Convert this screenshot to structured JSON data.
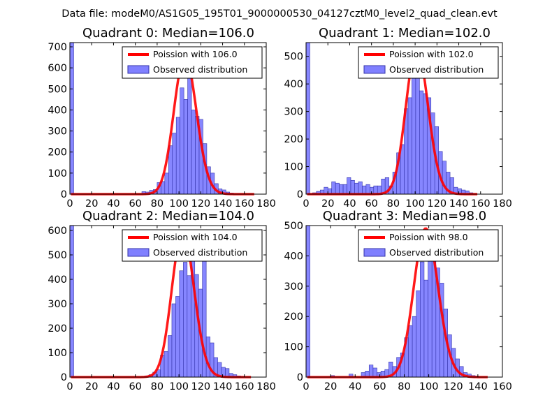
{
  "suptitle": "Data file: modeM0/AS1G05_195T01_9000000530_04127cztM0_level2_quad_clean.evt",
  "colors": {
    "hist_fill": "#8080ff",
    "hist_edge": "#3333aa",
    "poisson_line": "#ff0000"
  },
  "chart_data": [
    {
      "type": "bar",
      "title": "Quadrant 0: Median=106.0",
      "legend": {
        "line_label": "Poission with 106.0",
        "hist_label": "Observed distribution",
        "position": "top-right"
      },
      "xlim": [
        0,
        180
      ],
      "xticks": [
        0,
        20,
        40,
        60,
        80,
        100,
        120,
        140,
        160,
        180
      ],
      "ylim": [
        0,
        720
      ],
      "yticks": [
        0,
        100,
        200,
        300,
        400,
        500,
        600,
        700
      ],
      "bin_width": 3.5,
      "bins_x": [
        0,
        66,
        69.5,
        73,
        76.5,
        80,
        83.5,
        87,
        90.5,
        94,
        97.5,
        101,
        104.5,
        108,
        111.5,
        115,
        118.5,
        122,
        125.5,
        129,
        132.5,
        136,
        139.5,
        143,
        146.5
      ],
      "counts": [
        720,
        12,
        10,
        18,
        22,
        55,
        60,
        100,
        230,
        290,
        365,
        505,
        450,
        595,
        400,
        370,
        355,
        240,
        130,
        100,
        50,
        25,
        20,
        10,
        5
      ],
      "poisson_mean": 106.0,
      "poisson_peak": 655,
      "poisson_xrange": [
        1,
        169
      ]
    },
    {
      "type": "bar",
      "title": "Quadrant 1: Median=102.0",
      "legend": {
        "line_label": "Poission with 102.0",
        "hist_label": "Observed distribution",
        "position": "top-right"
      },
      "xlim": [
        0,
        180
      ],
      "xticks": [
        0,
        20,
        40,
        60,
        80,
        100,
        120,
        140,
        160,
        180
      ],
      "ylim": [
        0,
        550
      ],
      "yticks": [
        0,
        100,
        200,
        300,
        400,
        500
      ],
      "bin_width": 3.5,
      "bins_x": [
        0,
        6,
        9.5,
        13,
        16.5,
        20,
        23.5,
        27,
        30.5,
        34,
        37.5,
        41,
        44.5,
        48,
        51.5,
        55,
        58.5,
        62,
        65.5,
        69,
        72.5,
        76,
        79.5,
        83,
        86.5,
        90,
        93.5,
        97,
        100.5,
        104,
        107.5,
        111,
        114.5,
        118,
        121.5,
        125,
        128.5,
        132,
        135.5,
        139,
        142.5,
        146,
        149.5
      ],
      "counts": [
        550,
        5,
        10,
        15,
        25,
        20,
        45,
        40,
        35,
        35,
        60,
        50,
        40,
        45,
        30,
        35,
        25,
        30,
        30,
        55,
        60,
        30,
        80,
        150,
        180,
        310,
        350,
        430,
        460,
        375,
        365,
        350,
        295,
        245,
        155,
        120,
        80,
        60,
        25,
        20,
        15,
        12,
        5
      ],
      "poisson_mean": 102.0,
      "poisson_peak": 530,
      "poisson_xrange": [
        1,
        157
      ]
    },
    {
      "type": "bar",
      "title": "Quadrant 2: Median=104.0",
      "legend": {
        "line_label": "Poission with 104.0",
        "hist_label": "Observed distribution",
        "position": "top-right"
      },
      "xlim": [
        0,
        180
      ],
      "xticks": [
        0,
        20,
        40,
        60,
        80,
        100,
        120,
        140,
        160,
        180
      ],
      "ylim": [
        0,
        620
      ],
      "yticks": [
        0,
        100,
        200,
        300,
        400,
        500,
        600
      ],
      "bin_width": 3.5,
      "bins_x": [
        0,
        69,
        72.5,
        76,
        79.5,
        83,
        86.5,
        90,
        93.5,
        97,
        100.5,
        104,
        107.5,
        111,
        114.5,
        118,
        121.5,
        125,
        128.5,
        132,
        135.5,
        139,
        142.5,
        146,
        149.5,
        153,
        156.5
      ],
      "counts": [
        620,
        5,
        10,
        20,
        30,
        90,
        105,
        170,
        300,
        330,
        435,
        470,
        415,
        505,
        420,
        360,
        475,
        165,
        140,
        80,
        60,
        40,
        35,
        15,
        10,
        5,
        3
      ],
      "poisson_mean": 104.0,
      "poisson_peak": 595,
      "poisson_xrange": [
        1,
        166
      ]
    },
    {
      "type": "bar",
      "title": "Quadrant 3: Median=98.0",
      "legend": {
        "line_label": "Poission with 98.0",
        "hist_label": "Observed distribution",
        "position": "top-right"
      },
      "xlim": [
        0,
        160
      ],
      "xticks": [
        0,
        20,
        40,
        60,
        80,
        100,
        120,
        140,
        160
      ],
      "ylim": [
        0,
        500
      ],
      "yticks": [
        0,
        100,
        200,
        300,
        400,
        500
      ],
      "bin_width": 3.2,
      "bins_x": [
        0,
        20,
        35,
        45,
        48.2,
        51.4,
        54.6,
        57.8,
        61,
        64.2,
        67.4,
        70.6,
        73.8,
        77,
        80.2,
        83.4,
        86.6,
        89.8,
        93,
        96.2,
        99.4,
        102.6,
        105.8,
        109,
        112.2,
        115.4,
        118.6,
        121.8,
        125,
        128.2,
        131.4,
        134.6,
        137.8
      ],
      "counts": [
        500,
        5,
        10,
        15,
        20,
        40,
        30,
        15,
        20,
        25,
        50,
        35,
        65,
        80,
        130,
        170,
        200,
        285,
        380,
        320,
        425,
        400,
        360,
        310,
        225,
        140,
        95,
        60,
        35,
        15,
        10,
        5,
        3
      ],
      "poisson_mean": 98.0,
      "poisson_peak": 490,
      "poisson_xrange": [
        1,
        148
      ]
    }
  ]
}
